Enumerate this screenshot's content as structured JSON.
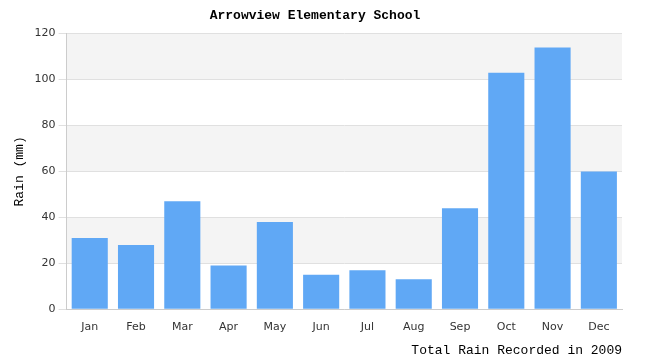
{
  "chart_data": {
    "type": "bar",
    "title": "Arrowview Elementary School",
    "x_label": "Total Rain Recorded in 2009",
    "y_label": "Rain (mm)",
    "categories": [
      "Jan",
      "Feb",
      "Mar",
      "Apr",
      "May",
      "Jun",
      "Jul",
      "Aug",
      "Sep",
      "Oct",
      "Nov",
      "Dec"
    ],
    "values": [
      31,
      28,
      47,
      19,
      38,
      15,
      17,
      13,
      44,
      103,
      114,
      60
    ],
    "color": "#60a8f5",
    "ylim": [
      0,
      120
    ],
    "yticks": [
      0,
      20,
      40,
      60,
      80,
      100,
      120
    ],
    "grid": true
  }
}
